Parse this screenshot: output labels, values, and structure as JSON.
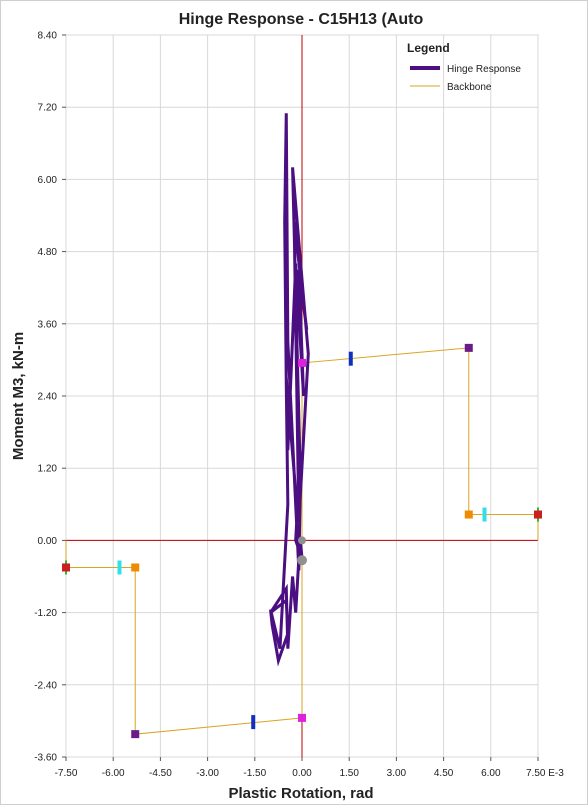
{
  "chart_data": {
    "type": "line",
    "title": "Hinge Response - C15H13 (Auto",
    "xlabel": "Plastic Rotation, rad",
    "ylabel": "Moment M3, kN-m",
    "x_unit_suffix": "E-3",
    "xlim": [
      -7.5,
      7.5
    ],
    "ylim": [
      -3.6,
      8.4
    ],
    "x_ticks": [
      -7.5,
      -6.0,
      -4.5,
      -3.0,
      -1.5,
      0.0,
      1.5,
      3.0,
      4.5,
      6.0,
      7.5
    ],
    "x_tick_labels": [
      "-7.50",
      "-6.00",
      "-4.50",
      "-3.00",
      "-1.50",
      "0.00",
      "1.50",
      "3.00",
      "4.50",
      "6.00",
      "7.50 E-3"
    ],
    "y_ticks": [
      -3.6,
      -2.4,
      -1.2,
      0.0,
      1.2,
      2.4,
      3.6,
      4.8,
      6.0,
      7.2,
      8.4
    ],
    "y_tick_labels": [
      "-3.60",
      "-2.40",
      "-1.20",
      "0.00",
      "1.20",
      "2.40",
      "3.60",
      "4.80",
      "6.00",
      "7.20",
      "8.40"
    ],
    "grid": true,
    "legend": {
      "title": "Legend",
      "position": "top-right",
      "entries": [
        "Hinge Response",
        "Backbone"
      ]
    },
    "colors": {
      "hinge_response": "#4b0f82",
      "backbone": "#daa520",
      "axis_zero": "#c00000",
      "grid": "#d8d8d8"
    },
    "series": [
      {
        "name": "Hinge Response",
        "x": [
          0.0,
          -0.2,
          -0.15,
          -0.5,
          -0.45,
          -0.2,
          0.05,
          -0.1,
          0.15,
          -0.25,
          -0.1,
          0.2,
          -0.3,
          -0.05,
          -0.1,
          -0.45,
          -0.5,
          -0.55,
          -0.5,
          -0.45,
          -0.7,
          -1.0,
          -0.95,
          -0.75,
          -0.45,
          -0.5,
          -1.0,
          -0.5,
          -0.45,
          -0.3,
          -0.2,
          -0.1,
          -0.05,
          0.0
        ],
        "y": [
          -0.3,
          0.0,
          0.5,
          2.7,
          1.5,
          4.6,
          2.4,
          4.5,
          3.5,
          5.3,
          0.3,
          3.1,
          6.2,
          1.0,
          -0.5,
          3.3,
          7.1,
          5.3,
          2.6,
          0.6,
          -1.8,
          -1.15,
          -1.4,
          -2.0,
          -1.55,
          -1.0,
          -1.2,
          -0.8,
          -1.8,
          -0.6,
          -1.2,
          -0.3,
          0.0,
          -0.3
        ]
      },
      {
        "name": "Backbone",
        "x": [
          -7.5,
          -7.5,
          -5.3,
          -5.3,
          0.0,
          0.0,
          5.3,
          5.3,
          7.5,
          7.5
        ],
        "y": [
          0.0,
          -0.45,
          -0.45,
          -3.22,
          -2.95,
          2.95,
          3.2,
          0.43,
          0.43,
          0.0
        ]
      }
    ],
    "markers": [
      {
        "label": "B+",
        "x": 0.0,
        "y": 2.95,
        "color": "#e020e0"
      },
      {
        "label": "IO+",
        "x": 1.55,
        "y": 3.02,
        "color": "#1030c0"
      },
      {
        "label": "C+",
        "x": 5.3,
        "y": 3.2,
        "color": "#6a1b8a"
      },
      {
        "label": "D+",
        "x": 5.3,
        "y": 0.43,
        "color": "#f08a00"
      },
      {
        "label": "LS+",
        "x": 5.8,
        "y": 0.43,
        "color": "#30e0e8"
      },
      {
        "label": "E+",
        "x": 7.5,
        "y": 0.43,
        "color": "#cc2020"
      },
      {
        "label": "B-",
        "x": 0.0,
        "y": -2.95,
        "color": "#e020e0"
      },
      {
        "label": "IO-",
        "x": -1.55,
        "y": -3.02,
        "color": "#1030c0"
      },
      {
        "label": "C-",
        "x": -5.3,
        "y": -3.22,
        "color": "#6a1b8a"
      },
      {
        "label": "D-",
        "x": -5.3,
        "y": -0.45,
        "color": "#f08a00"
      },
      {
        "label": "LS-",
        "x": -5.8,
        "y": -0.45,
        "color": "#30e0e8"
      },
      {
        "label": "E-",
        "x": -7.5,
        "y": -0.45,
        "color": "#cc2020"
      },
      {
        "label": "current",
        "x": 0.0,
        "y": -0.33,
        "color": "#909090"
      },
      {
        "label": "origin",
        "x": 0.0,
        "y": 0.0,
        "color": "#909090"
      }
    ]
  }
}
